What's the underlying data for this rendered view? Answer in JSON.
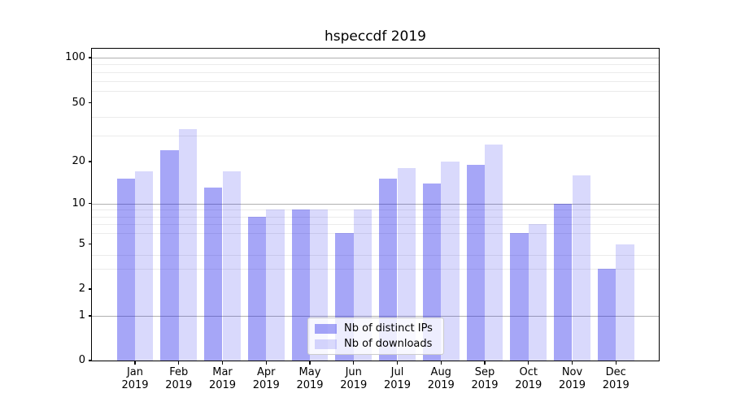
{
  "title": "hspeccdf 2019",
  "chart_data": {
    "type": "bar",
    "title": "hspeccdf 2019",
    "categories": [
      "Jan",
      "Feb",
      "Mar",
      "Apr",
      "May",
      "Jun",
      "Jul",
      "Aug",
      "Sep",
      "Oct",
      "Nov",
      "Dec"
    ],
    "x_tick_year": "2019",
    "series": [
      {
        "name": "Nb of distinct IPs",
        "color": "rgba(20,20,235,0.38)",
        "solid_color": "#a6a6f7",
        "values": [
          15,
          24,
          13,
          8,
          9,
          6,
          15,
          14,
          19,
          6,
          10,
          3
        ]
      },
      {
        "name": "Nb of downloads",
        "color": "rgba(20,20,235,0.16)",
        "solid_color": "#d9d9fb",
        "values": [
          17,
          33,
          17,
          9,
          9,
          9,
          18,
          20,
          26,
          7,
          16,
          5
        ]
      }
    ],
    "xlabel": "",
    "ylabel": "",
    "y_scale": "symlog",
    "y_ticks": [
      0,
      1,
      2,
      5,
      10,
      20,
      50,
      100
    ],
    "y_major_gridlines": [
      1,
      10,
      100
    ],
    "y_minor_gridlines": [
      3,
      4,
      6,
      7,
      8,
      9,
      30,
      40,
      60,
      70,
      80,
      90
    ],
    "ylim": [
      0,
      115
    ],
    "grid": "on",
    "legend_position": "lower center"
  },
  "colors": {
    "bar_distinct_ips": "#a6a6f7",
    "bar_downloads": "#d9d9fb",
    "grid_major": "#b0b0b0",
    "grid_minor": "#ebebeb",
    "spine": "#000000",
    "legend_border": "#cccccc",
    "background": "#ffffff"
  }
}
